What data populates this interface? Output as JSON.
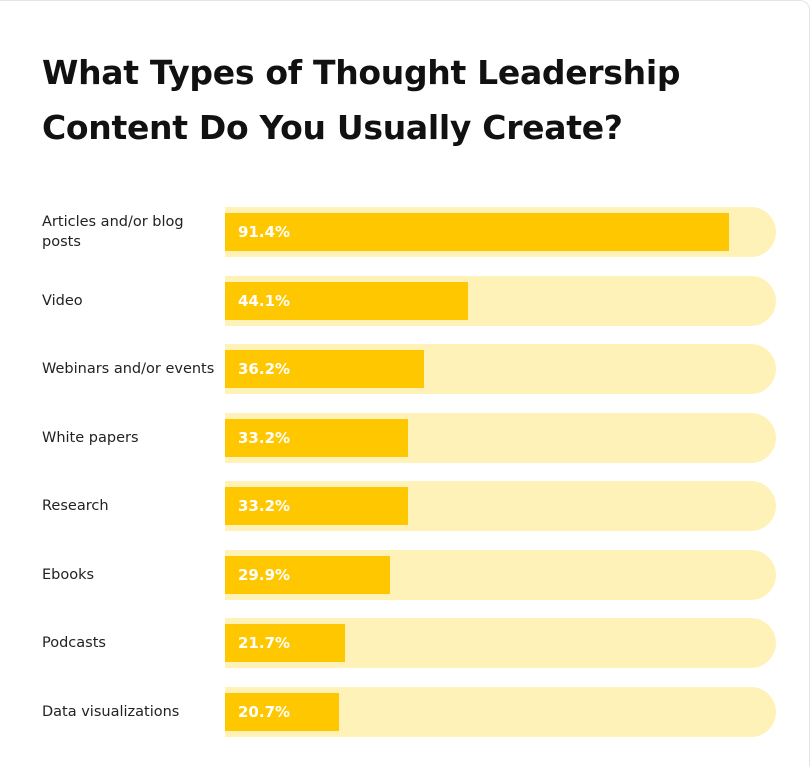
{
  "chart_data": {
    "type": "bar",
    "orientation": "horizontal",
    "title": "What Types of Thought Leadership Content Do You Usually Create?",
    "categories": [
      "Articles and/or blog posts",
      "Video",
      "Webinars and/or events",
      "White papers",
      "Research",
      "Ebooks",
      "Podcasts",
      "Data visualizations"
    ],
    "values": [
      91.4,
      44.1,
      36.2,
      33.2,
      33.2,
      29.9,
      21.7,
      20.7
    ],
    "value_labels": [
      "91.4%",
      "44.1%",
      "36.2%",
      "33.2%",
      "33.2%",
      "29.9%",
      "21.7%",
      "20.7%"
    ],
    "color": "#ffc700",
    "track_color": "#fef2b8",
    "xlim": [
      0,
      100
    ]
  }
}
